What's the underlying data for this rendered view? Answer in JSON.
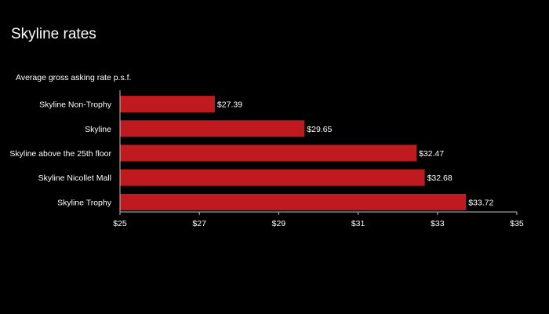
{
  "slide": {
    "title": "Skyline rates"
  },
  "chart_data": {
    "type": "bar",
    "orientation": "horizontal",
    "subtitle": "Average gross asking rate p.s.f.",
    "categories": [
      "Skyline Non-Trophy",
      "Skyline",
      "Skyline above the 25th floor",
      "Skyline Nicollet Mall",
      "Skyline Trophy"
    ],
    "values": [
      27.39,
      29.65,
      32.47,
      32.68,
      33.72
    ],
    "data_labels": [
      "$27.39",
      "$29.65",
      "$32.47",
      "$32.68",
      "$33.72"
    ],
    "xlim": [
      25,
      35
    ],
    "x_ticks": [
      25,
      27,
      29,
      31,
      33,
      35
    ],
    "x_tick_labels": [
      "$25",
      "$27",
      "$29",
      "$31",
      "$33",
      "$35"
    ],
    "bar_color": "#be1a20",
    "axis_color": "#bfbfbf",
    "grid": false,
    "legend": "none"
  }
}
